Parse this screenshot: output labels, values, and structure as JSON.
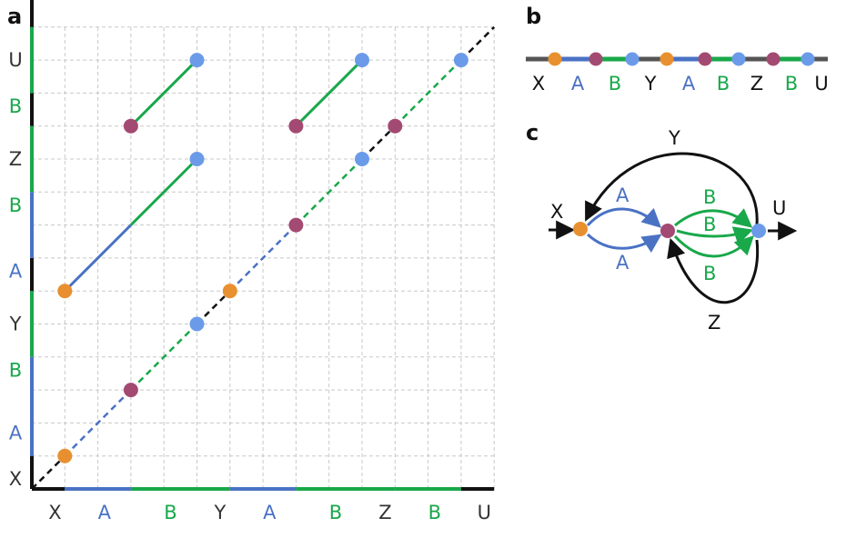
{
  "colors": {
    "X": "#e8902f",
    "Y": "#111111",
    "Z": "#111111",
    "U": "#111111",
    "A": "#4a72c4",
    "B": "#19a84a",
    "junction_AB": "#a34a72",
    "end_U": "#6b9be8",
    "grid": "#c8c8c8",
    "strand": "#555555"
  },
  "panel_a": {
    "label": "a",
    "x_axis": [
      {
        "text": "X",
        "kind": "X",
        "cells": 1
      },
      {
        "text": "A",
        "kind": "A",
        "cells": 2
      },
      {
        "text": "B",
        "kind": "B",
        "cells": 3
      },
      {
        "text": "Y",
        "kind": "Y",
        "cells": 0
      },
      {
        "text": "A",
        "kind": "A",
        "cells": 2
      },
      {
        "text": "B",
        "kind": "B",
        "cells": 3
      },
      {
        "text": "Z",
        "kind": "Z",
        "cells": 0
      },
      {
        "text": "B",
        "kind": "B",
        "cells": 2
      },
      {
        "text": "U",
        "kind": "U",
        "cells": 1
      }
    ],
    "y_axis": [
      {
        "text": "X",
        "kind": "X",
        "cells": 1
      },
      {
        "text": "A",
        "kind": "A",
        "cells": 3
      },
      {
        "text": "B",
        "kind": "B",
        "cells": 2
      },
      {
        "text": "Y",
        "kind": "Y",
        "cells": 1
      },
      {
        "text": "A",
        "kind": "A",
        "cells": 2
      },
      {
        "text": "B",
        "kind": "B",
        "cells": 2
      },
      {
        "text": "Z",
        "kind": "Z",
        "cells": 1
      },
      {
        "text": "B",
        "kind": "B",
        "cells": 2
      },
      {
        "text": "U",
        "kind": "U",
        "cells": 1
      }
    ],
    "diagonal_segments": [
      {
        "from": 0,
        "to": 1,
        "kind": "strand"
      },
      {
        "from": 1,
        "to": 3,
        "kind": "A"
      },
      {
        "from": 3,
        "to": 5,
        "kind": "B"
      },
      {
        "from": 5,
        "to": 6,
        "kind": "strand"
      },
      {
        "from": 6,
        "to": 8,
        "kind": "A"
      },
      {
        "from": 8,
        "to": 10,
        "kind": "B"
      },
      {
        "from": 10,
        "to": 11,
        "kind": "strand"
      },
      {
        "from": 11,
        "to": 13,
        "kind": "B"
      },
      {
        "from": 13,
        "to": 14,
        "kind": "strand"
      }
    ],
    "diagonal_points": [
      {
        "pos": 1,
        "kind": "X"
      },
      {
        "pos": 3,
        "kind": "junction_AB"
      },
      {
        "pos": 5,
        "kind": "end_U"
      },
      {
        "pos": 6,
        "kind": "X"
      },
      {
        "pos": 8,
        "kind": "junction_AB"
      },
      {
        "pos": 10,
        "kind": "end_U"
      },
      {
        "pos": 11,
        "kind": "junction_AB"
      },
      {
        "pos": 13,
        "kind": "end_U"
      }
    ],
    "off_diagonal_lines": [
      {
        "x": [
          1,
          3
        ],
        "y": [
          6,
          8
        ],
        "kind": "A"
      },
      {
        "x": [
          3,
          5
        ],
        "y": [
          8,
          10
        ],
        "kind": "B"
      },
      {
        "x": [
          3,
          5
        ],
        "y": [
          11,
          13
        ],
        "kind": "B"
      },
      {
        "x": [
          8,
          10
        ],
        "y": [
          11,
          13
        ],
        "kind": "B"
      }
    ],
    "off_diagonal_points": [
      {
        "x": 1,
        "y": 6,
        "kind": "X"
      },
      {
        "x": 5,
        "y": 10,
        "kind": "end_U"
      },
      {
        "x": 3,
        "y": 11,
        "kind": "junction_AB"
      },
      {
        "x": 5,
        "y": 13,
        "kind": "end_U"
      },
      {
        "x": 8,
        "y": 11,
        "kind": "junction_AB"
      },
      {
        "x": 10,
        "y": 13,
        "kind": "end_U"
      }
    ]
  },
  "panel_b": {
    "label": "b",
    "labels": [
      {
        "text": "X",
        "kind": "X"
      },
      {
        "text": "A",
        "kind": "A"
      },
      {
        "text": "B",
        "kind": "B"
      },
      {
        "text": "Y",
        "kind": "Y"
      },
      {
        "text": "A",
        "kind": "A"
      },
      {
        "text": "B",
        "kind": "B"
      },
      {
        "text": "Z",
        "kind": "Z"
      },
      {
        "text": "B",
        "kind": "B"
      },
      {
        "text": "U",
        "kind": "U"
      }
    ],
    "nodes": [
      "X",
      "junction_AB",
      "end_U",
      "X",
      "junction_AB",
      "end_U",
      "junction_AB",
      "end_U"
    ]
  },
  "panel_c": {
    "label": "c",
    "edge_labels": {
      "in": "X",
      "loop_top": "Y",
      "a_top": "A",
      "a_bottom": "A",
      "b_1": "B",
      "b_2": "B",
      "b_3": "B",
      "out": "U",
      "loop_bottom": "Z"
    }
  }
}
